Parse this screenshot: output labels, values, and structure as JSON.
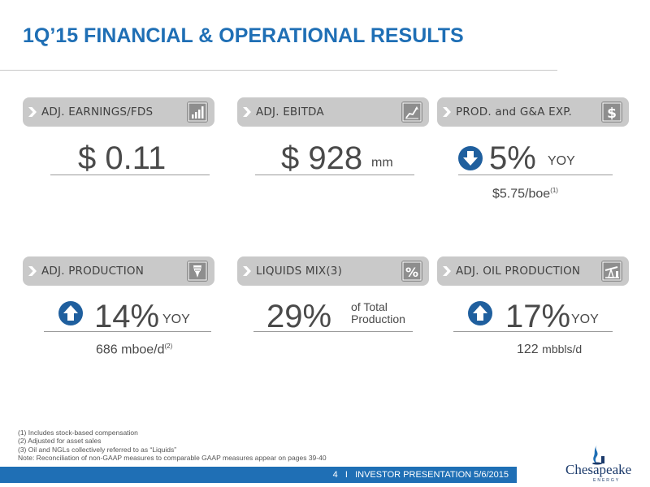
{
  "title": "1Q’15 FINANCIAL & OPERATIONAL RESULTS",
  "cards": [
    {
      "label": "ADJ. EARNINGS/FDS",
      "icon": "bar-chart-icon",
      "value": "$ 0.11"
    },
    {
      "label": "ADJ. EBITDA",
      "icon": "trend-chart-icon",
      "value": "$ 928",
      "unit": "mm"
    },
    {
      "label": "PROD. and G&A EXP.",
      "icon": "dollar-icon",
      "value": "5%",
      "unit": "YOY",
      "direction": "down",
      "sub": "$5.75/boe",
      "sub_note": "(1)"
    },
    {
      "label": "ADJ. PRODUCTION",
      "icon": "drill-bit-icon",
      "value": "14%",
      "unit": "YOY",
      "direction": "up",
      "sub": "686 mboe/d",
      "sub_note": "(2)"
    },
    {
      "label": "LIQUIDS MIX(3)",
      "icon": "percent-icon",
      "value": "29%",
      "unit_line1": "of Total",
      "unit_line2": "Production"
    },
    {
      "label": "ADJ. OIL PRODUCTION",
      "icon": "pumpjack-icon",
      "value": "17%",
      "unit": "YOY",
      "direction": "up",
      "sub_value": "122",
      "sub_unit": "mbbls/d"
    }
  ],
  "colors": {
    "accent": "#1f6fb5",
    "card_header": "#c9c9c9",
    "icon_bg": "#8e8e8e"
  },
  "footnotes": [
    "(1)    Includes stock-based compensation",
    "(2)    Adjusted for asset sales",
    "(3)    Oil and NGLs collectively referred to as “Liquids”",
    "Note: Reconciliation of non-GAAP measures to comparable GAAP measures appear on pages 39-40"
  ],
  "footer": {
    "page": "4",
    "separator": "I",
    "text": "INVESTOR PRESENTATION 5/6/2015"
  },
  "logo": {
    "name": "Chesapeake",
    "tagline": "ENERGY"
  }
}
